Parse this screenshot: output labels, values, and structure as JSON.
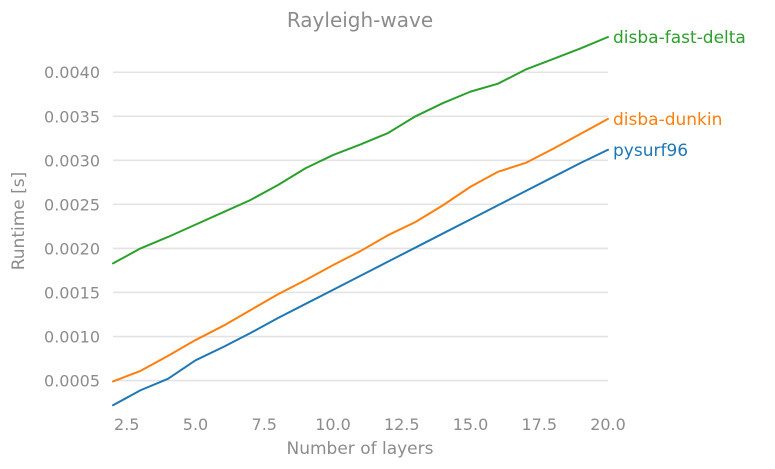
{
  "chart_data": {
    "type": "line",
    "title": "Rayleigh-wave",
    "xlabel": "Number of layers",
    "ylabel": "Runtime [s]",
    "xlim": [
      2,
      20
    ],
    "ylim": [
      0.0002,
      0.0044
    ],
    "grid": "horizontal",
    "legend": "inline labels at line ends (right)",
    "x_ticks": [
      "2.5",
      "5.0",
      "7.5",
      "10.0",
      "12.5",
      "15.0",
      "17.5",
      "20.0"
    ],
    "x_tick_values": [
      2.5,
      5.0,
      7.5,
      10.0,
      12.5,
      15.0,
      17.5,
      20.0
    ],
    "y_ticks": [
      "0.0005",
      "0.0010",
      "0.0015",
      "0.0020",
      "0.0025",
      "0.0030",
      "0.0035",
      "0.0040"
    ],
    "y_tick_values": [
      0.0005,
      0.001,
      0.0015,
      0.002,
      0.0025,
      0.003,
      0.0035,
      0.004
    ],
    "x": [
      2,
      3,
      4,
      5,
      6,
      7,
      8,
      9,
      10,
      11,
      12,
      13,
      14,
      15,
      16,
      17,
      18,
      19,
      20
    ],
    "series": [
      {
        "name": "disba-fast-delta",
        "color": "#2ca02c",
        "values": [
          0.00183,
          0.002,
          0.00213,
          0.00227,
          0.00241,
          0.00255,
          0.00272,
          0.00291,
          0.00306,
          0.00318,
          0.00331,
          0.0035,
          0.00365,
          0.00378,
          0.00387,
          0.00403,
          0.00415,
          0.00427,
          0.0044
        ]
      },
      {
        "name": "disba-dunkin",
        "color": "#ff7f0e",
        "values": [
          0.00049,
          0.00061,
          0.00078,
          0.00096,
          0.00112,
          0.0013,
          0.00148,
          0.00164,
          0.00181,
          0.00197,
          0.00215,
          0.0023,
          0.00249,
          0.0027,
          0.00287,
          0.00297,
          0.00313,
          0.0033,
          0.00347
        ]
      },
      {
        "name": "pysurf96",
        "color": "#1f77b4",
        "values": [
          0.00022,
          0.00039,
          0.00052,
          0.00073,
          0.00088,
          0.00104,
          0.00121,
          0.00137,
          0.00153,
          0.00169,
          0.00185,
          0.00201,
          0.00217,
          0.00233,
          0.00249,
          0.00265,
          0.00281,
          0.00297,
          0.00312
        ]
      }
    ]
  }
}
